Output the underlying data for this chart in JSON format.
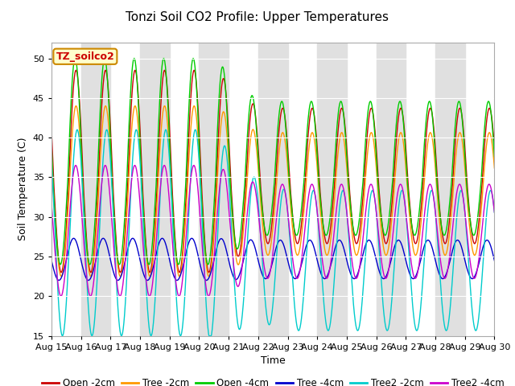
{
  "title": "Tonzi Soil CO2 Profile: Upper Temperatures",
  "xlabel": "Time",
  "ylabel": "Soil Temperature (C)",
  "ylim": [
    15,
    52
  ],
  "yticks": [
    15,
    20,
    25,
    30,
    35,
    40,
    45,
    50
  ],
  "n_points": 1440,
  "series": [
    {
      "label": "Open -2cm",
      "color": "#cc0000"
    },
    {
      "label": "Tree -2cm",
      "color": "#ff9900"
    },
    {
      "label": "Open -4cm",
      "color": "#00cc00"
    },
    {
      "label": "Tree -4cm",
      "color": "#0000cc"
    },
    {
      "label": "Tree2 -2cm",
      "color": "#00cccc"
    },
    {
      "label": "Tree2 -4cm",
      "color": "#cc00cc"
    }
  ],
  "annotation_text": "TZ_soilco2",
  "annotation_bg": "#ffffcc",
  "annotation_border": "#cc8800",
  "bg_band_color": "#e0e0e0",
  "x_tick_labels": [
    "Aug 15",
    "Aug 16",
    "Aug 17",
    "Aug 18",
    "Aug 19",
    "Aug 20",
    "Aug 21",
    "Aug 22",
    "Aug 23",
    "Aug 24",
    "Aug 25",
    "Aug 26",
    "Aug 27",
    "Aug 28",
    "Aug 29",
    "Aug 30"
  ],
  "title_fontsize": 11,
  "label_fontsize": 9,
  "tick_fontsize": 8,
  "legend_fontsize": 8.5,
  "linewidth": 1.0
}
